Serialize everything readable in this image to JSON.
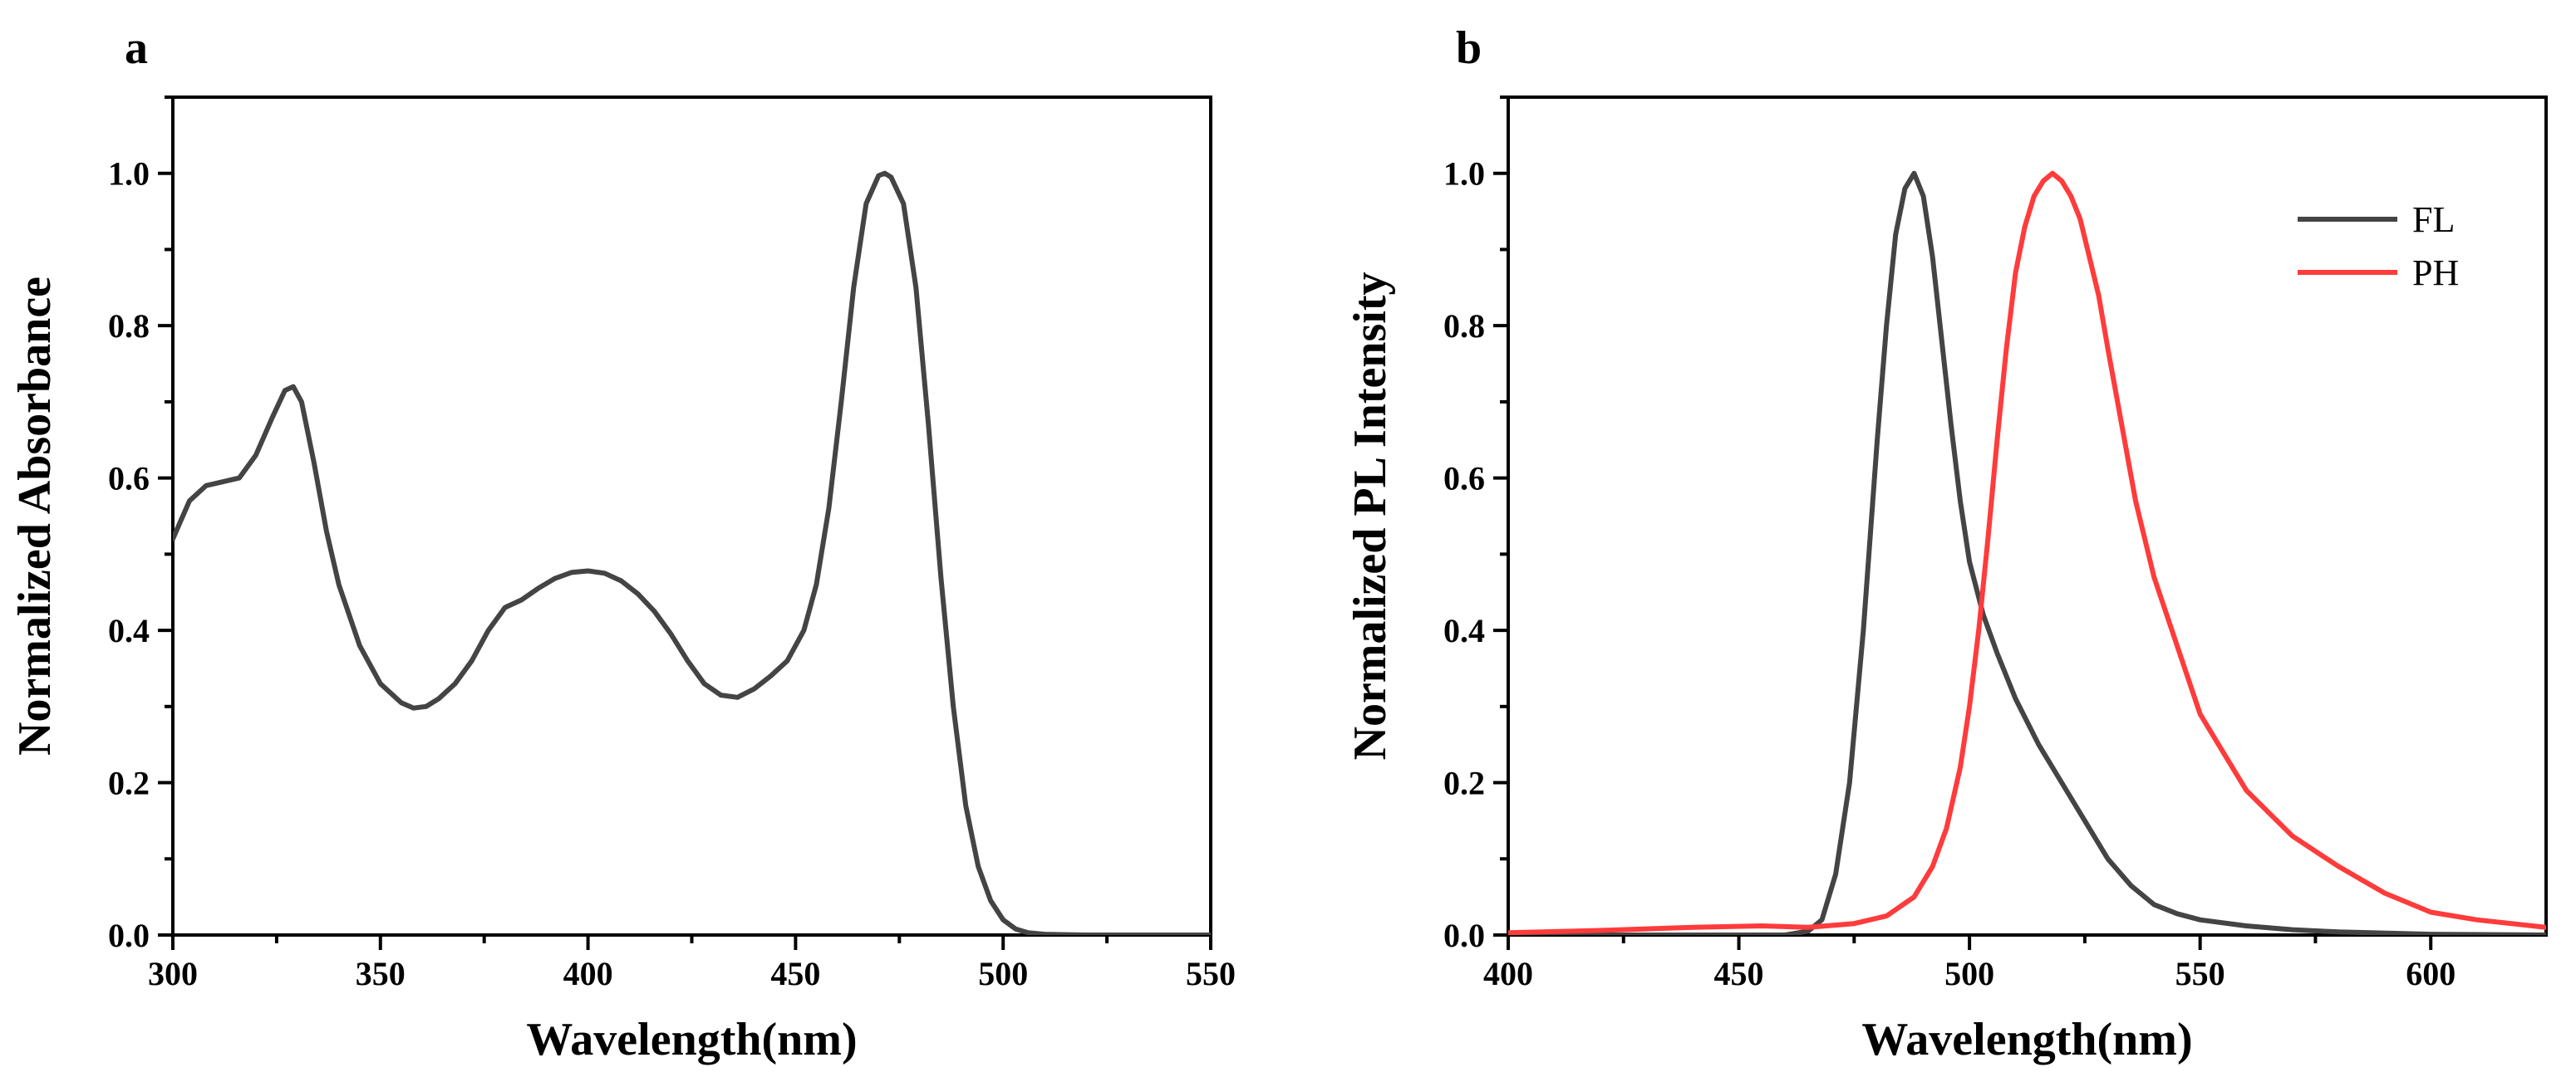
{
  "chart_data": [
    {
      "panel": "a",
      "type": "line",
      "xlabel": "Wavelength(nm)",
      "ylabel": "Normalized Absorbance",
      "xlim": [
        300,
        550
      ],
      "ylim": [
        0,
        1.1
      ],
      "xticks": [
        300,
        350,
        400,
        450,
        500,
        550
      ],
      "yticks": [
        0.0,
        0.2,
        0.4,
        0.6,
        0.8,
        1.0
      ],
      "ytick_labels": [
        "0.0",
        "0.2",
        "0.4",
        "0.6",
        "0.8",
        "1.0"
      ],
      "grid": false,
      "series": [
        {
          "name": "Absorbance",
          "color": "#444444",
          "x": [
            300,
            304,
            308,
            312,
            316,
            320,
            324,
            327,
            329,
            331,
            334,
            337,
            340,
            345,
            350,
            355,
            358,
            361,
            364,
            368,
            372,
            376,
            380,
            384,
            388,
            392,
            396,
            400,
            404,
            408,
            412,
            416,
            420,
            424,
            428,
            432,
            436,
            440,
            444,
            448,
            452,
            455,
            458,
            461,
            464,
            467,
            470,
            471.5,
            473,
            476,
            479,
            482,
            485,
            488,
            491,
            494,
            497,
            500,
            503,
            506,
            510,
            520,
            530,
            550
          ],
          "y": [
            0.52,
            0.57,
            0.59,
            0.595,
            0.6,
            0.63,
            0.68,
            0.715,
            0.72,
            0.7,
            0.62,
            0.53,
            0.46,
            0.38,
            0.33,
            0.305,
            0.298,
            0.3,
            0.31,
            0.33,
            0.36,
            0.4,
            0.43,
            0.44,
            0.455,
            0.468,
            0.476,
            0.478,
            0.475,
            0.465,
            0.448,
            0.425,
            0.395,
            0.36,
            0.33,
            0.315,
            0.312,
            0.323,
            0.34,
            0.36,
            0.4,
            0.46,
            0.56,
            0.7,
            0.85,
            0.96,
            0.997,
            1.0,
            0.995,
            0.96,
            0.85,
            0.67,
            0.47,
            0.3,
            0.17,
            0.09,
            0.045,
            0.02,
            0.008,
            0.003,
            0.001,
            0.0,
            0.0,
            0.0
          ]
        }
      ]
    },
    {
      "panel": "b",
      "type": "line",
      "xlabel": "Wavelength(nm)",
      "ylabel": "Normalized PL Intensity",
      "xlim": [
        400,
        625
      ],
      "ylim": [
        0,
        1.1
      ],
      "xticks": [
        400,
        450,
        500,
        550,
        600
      ],
      "yticks": [
        0.0,
        0.2,
        0.4,
        0.6,
        0.8,
        1.0
      ],
      "ytick_labels": [
        "0.0",
        "0.2",
        "0.4",
        "0.6",
        "0.8",
        "1.0"
      ],
      "grid": false,
      "legend_position": "top-right",
      "series": [
        {
          "name": "FL",
          "color": "#444444",
          "x": [
            400,
            460,
            465,
            468,
            471,
            474,
            477,
            480,
            482,
            484,
            486,
            488,
            490,
            492,
            494,
            496,
            498,
            500,
            503,
            506,
            510,
            515,
            520,
            525,
            530,
            535,
            540,
            545,
            550,
            560,
            570,
            580,
            600,
            625
          ],
          "y": [
            0.0,
            0.0,
            0.005,
            0.02,
            0.08,
            0.2,
            0.4,
            0.65,
            0.8,
            0.92,
            0.98,
            1.0,
            0.97,
            0.89,
            0.78,
            0.67,
            0.57,
            0.49,
            0.42,
            0.37,
            0.31,
            0.25,
            0.2,
            0.15,
            0.1,
            0.065,
            0.04,
            0.028,
            0.02,
            0.012,
            0.007,
            0.004,
            0.001,
            0.0
          ]
        },
        {
          "name": "PH",
          "color": "#ff3b3b",
          "x": [
            400,
            420,
            440,
            455,
            465,
            475,
            482,
            488,
            492,
            495,
            498,
            500,
            502,
            504,
            506,
            508,
            510,
            512,
            514,
            516,
            518,
            520,
            522,
            524,
            526,
            528,
            530,
            533,
            536,
            540,
            545,
            550,
            555,
            560,
            565,
            570,
            575,
            580,
            590,
            600,
            610,
            625
          ],
          "y": [
            0.003,
            0.006,
            0.01,
            0.012,
            0.01,
            0.015,
            0.025,
            0.05,
            0.09,
            0.14,
            0.22,
            0.3,
            0.4,
            0.52,
            0.65,
            0.77,
            0.87,
            0.93,
            0.97,
            0.99,
            1.0,
            0.99,
            0.97,
            0.94,
            0.89,
            0.84,
            0.77,
            0.67,
            0.57,
            0.47,
            0.38,
            0.29,
            0.24,
            0.19,
            0.16,
            0.13,
            0.11,
            0.09,
            0.055,
            0.03,
            0.02,
            0.01
          ]
        }
      ]
    }
  ]
}
